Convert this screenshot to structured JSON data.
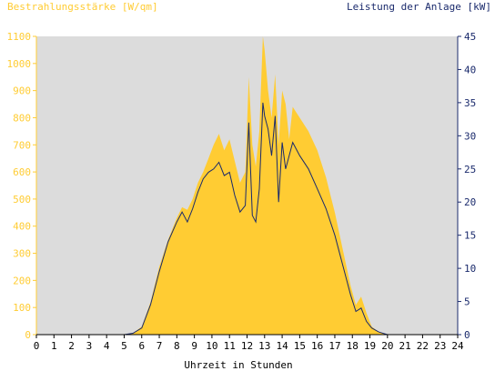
{
  "chart_data": {
    "type": "area",
    "title_left": "Bestrahlungsstärke [W/qm]",
    "title_right": "Leistung der Anlage [kW]",
    "xlabel": "Uhrzeit in Stunden",
    "xlim": [
      0,
      24
    ],
    "x_ticks": [
      "0",
      "1",
      "2",
      "3",
      "4",
      "5",
      "6",
      "7",
      "8",
      "9",
      "10",
      "11",
      "12",
      "13",
      "14",
      "15",
      "16",
      "17",
      "18",
      "19",
      "20",
      "21",
      "22",
      "23",
      "24"
    ],
    "y_left_lim": [
      0,
      1100
    ],
    "y_left_ticks": [
      "0",
      "100",
      "200",
      "300",
      "400",
      "500",
      "600",
      "700",
      "800",
      "900",
      "1000",
      "1100"
    ],
    "y_right_lim": [
      0,
      45
    ],
    "y_right_ticks": [
      "0",
      "5",
      "10",
      "15",
      "20",
      "25",
      "30",
      "35",
      "40",
      "45"
    ],
    "grid": false,
    "colors": {
      "irradiance_fill": "#ffcc33",
      "power_line": "#1a2a6c",
      "plot_background": "#dcdcdc",
      "left_axis_text": "#ffcc33",
      "right_axis_text": "#1a2a6c"
    },
    "series": [
      {
        "axis": "left",
        "kind": "area",
        "x": [
          0,
          5.0,
          5.5,
          6.0,
          6.5,
          7.0,
          7.5,
          8.0,
          8.3,
          8.6,
          8.9,
          9.2,
          9.5,
          9.8,
          10.1,
          10.4,
          10.7,
          11.0,
          11.3,
          11.6,
          11.9,
          12.1,
          12.3,
          12.5,
          12.7,
          12.9,
          13.0,
          13.2,
          13.4,
          13.6,
          13.8,
          14.0,
          14.2,
          14.4,
          14.6,
          14.8,
          15.0,
          15.5,
          16.0,
          16.5,
          17.0,
          17.5,
          17.9,
          18.2,
          18.5,
          18.8,
          19.1,
          19.5,
          20.0,
          24
        ],
        "values": [
          0,
          0,
          5,
          30,
          120,
          250,
          350,
          430,
          470,
          460,
          500,
          560,
          600,
          650,
          700,
          740,
          680,
          720,
          640,
          560,
          600,
          950,
          700,
          620,
          750,
          1100,
          1050,
          900,
          800,
          960,
          700,
          900,
          850,
          720,
          840,
          820,
          800,
          750,
          680,
          580,
          450,
          300,
          180,
          110,
          140,
          80,
          30,
          10,
          0,
          0
        ]
      },
      {
        "axis": "right",
        "kind": "line",
        "x": [
          0,
          5.0,
          5.5,
          6.0,
          6.5,
          7.0,
          7.5,
          8.0,
          8.3,
          8.6,
          8.9,
          9.2,
          9.5,
          9.8,
          10.1,
          10.4,
          10.7,
          11.0,
          11.3,
          11.6,
          11.9,
          12.1,
          12.3,
          12.5,
          12.7,
          12.9,
          13.0,
          13.2,
          13.4,
          13.6,
          13.8,
          14.0,
          14.2,
          14.4,
          14.6,
          14.8,
          15.0,
          15.5,
          16.0,
          16.5,
          17.0,
          17.5,
          17.9,
          18.2,
          18.5,
          18.8,
          19.1,
          19.5,
          20.0,
          24
        ],
        "values": [
          0,
          0,
          0.2,
          1,
          4.5,
          9.5,
          14,
          17,
          18.5,
          17,
          19,
          21.5,
          23.5,
          24.5,
          25,
          26,
          24,
          24.5,
          21,
          18.5,
          19.5,
          32,
          18,
          17,
          22,
          35,
          33,
          31,
          27,
          33,
          20,
          29,
          25,
          27,
          29,
          28,
          27,
          25,
          22,
          19,
          15,
          10,
          6,
          3.5,
          4,
          2,
          1,
          0.4,
          0,
          0
        ]
      }
    ]
  }
}
